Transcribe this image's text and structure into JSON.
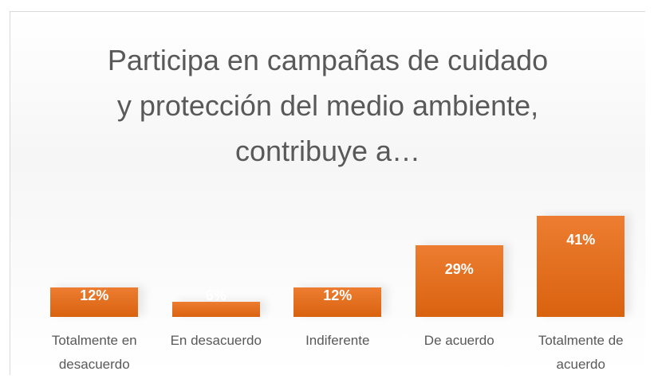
{
  "chart_data": {
    "type": "bar",
    "title": "Participa en campañas de cuidado y protección del medio ambiente, contribuye a…",
    "categories": [
      "Totalmente en desacuerdo",
      "En desacuerdo",
      "Indiferente",
      "De acuerdo",
      "Totalmente de acuerdo"
    ],
    "values": [
      12,
      6,
      12,
      29,
      41
    ],
    "value_labels": [
      "12%",
      "6%",
      "12%",
      "29%",
      "41%"
    ],
    "color": "#ed7d31"
  }
}
